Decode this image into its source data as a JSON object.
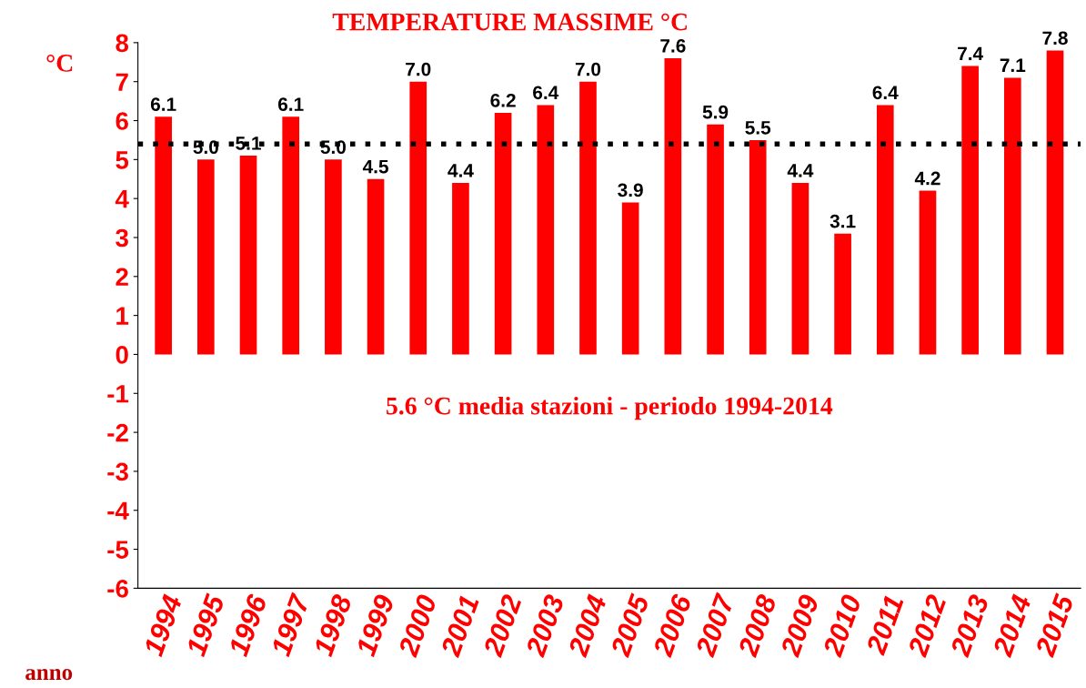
{
  "chart_data": {
    "type": "bar",
    "title": "TEMPERATURE MASSIME °C",
    "ylabel": "°C",
    "xlabel": "anno",
    "categories": [
      "1994",
      "1995",
      "1996",
      "1997",
      "1998",
      "1999",
      "2000",
      "2001",
      "2002",
      "2003",
      "2004",
      "2005",
      "2006",
      "2007",
      "2008",
      "2009",
      "2010",
      "2011",
      "2012",
      "2013",
      "2014",
      "2015"
    ],
    "values": [
      6.1,
      5.0,
      5.1,
      6.1,
      5.0,
      4.5,
      7.0,
      4.4,
      6.2,
      6.4,
      7.0,
      3.9,
      7.6,
      5.9,
      5.5,
      4.4,
      3.1,
      6.4,
      4.2,
      7.4,
      7.1,
      7.8
    ],
    "color": "#ff0000",
    "ylim": [
      -6,
      8
    ],
    "yticks": [
      -6,
      -5,
      -4,
      -3,
      -2,
      -1,
      0,
      1,
      2,
      3,
      4,
      5,
      6,
      7,
      8
    ],
    "ref_lines": [
      {
        "axis": "y",
        "value": 5.4,
        "color": "#000000",
        "line_style": "dotted"
      }
    ],
    "annotations": [
      "5.6 °C media stazioni - periodo 1994-2014"
    ],
    "value_labels": [
      "6.1",
      "5.0",
      "5.1",
      "6.1",
      "5.0",
      "4.5",
      "7.0",
      "4.4",
      "6.2",
      "6.4",
      "7.0",
      "3.9",
      "7.6",
      "5.9",
      "5.5",
      "4.4",
      "3.1",
      "6.4",
      "4.2",
      "7.4",
      "7.1",
      "7.8"
    ],
    "grid": false,
    "legend": false
  }
}
